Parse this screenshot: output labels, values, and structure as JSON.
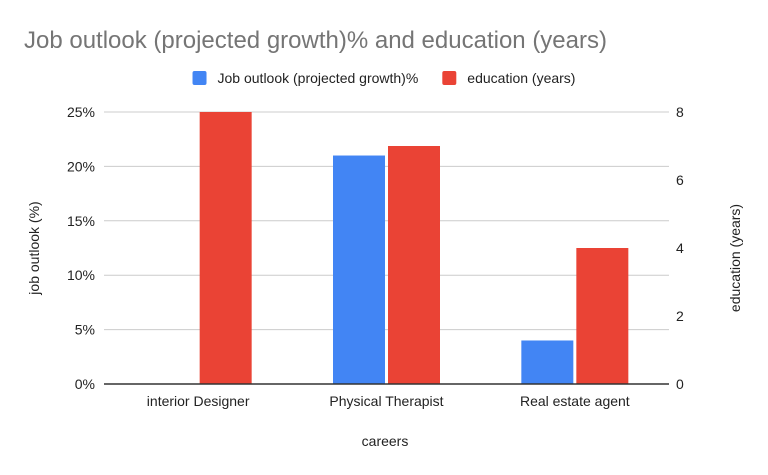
{
  "chart_data": {
    "type": "bar",
    "title": "Job outlook (projected growth)% and education (years)",
    "xlabel": "careers",
    "ylabel": "job outlook (%)",
    "y2label": "education (years)",
    "categories": [
      "interior Designer",
      "Physical Therapist",
      "Real estate agent"
    ],
    "series": [
      {
        "name": "Job outlook (projected growth)%",
        "axis": "left",
        "color": "#4285f4",
        "values": [
          0,
          21,
          4
        ]
      },
      {
        "name": "education (years)",
        "axis": "right",
        "color": "#ea4335",
        "values": [
          8,
          7,
          4
        ]
      }
    ],
    "ylim": [
      0,
      25
    ],
    "y2lim": [
      0,
      8
    ],
    "yticks": [
      "0%",
      "5%",
      "10%",
      "15%",
      "20%",
      "25%"
    ],
    "y2ticks": [
      "0",
      "2",
      "4",
      "6",
      "8"
    ],
    "grid": true,
    "legend_position": "top"
  }
}
